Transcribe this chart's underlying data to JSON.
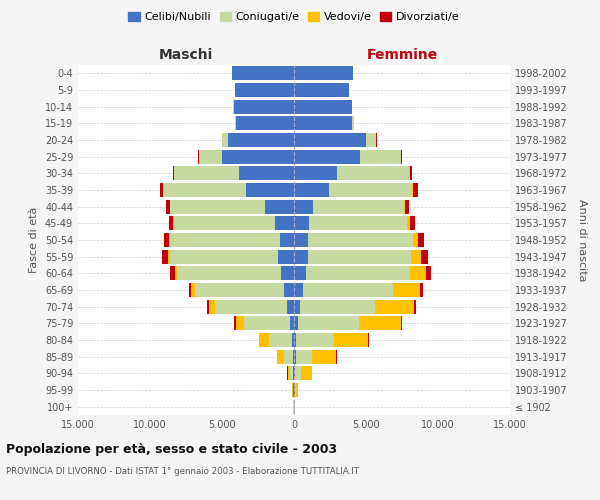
{
  "age_groups": [
    "100+",
    "95-99",
    "90-94",
    "85-89",
    "80-84",
    "75-79",
    "70-74",
    "65-69",
    "60-64",
    "55-59",
    "50-54",
    "45-49",
    "40-44",
    "35-39",
    "30-34",
    "25-29",
    "20-24",
    "15-19",
    "10-14",
    "5-9",
    "0-4"
  ],
  "birth_years": [
    "≤ 1902",
    "1903-1907",
    "1908-1912",
    "1913-1917",
    "1918-1922",
    "1923-1927",
    "1928-1932",
    "1933-1937",
    "1938-1942",
    "1943-1947",
    "1948-1952",
    "1953-1957",
    "1958-1962",
    "1963-1967",
    "1968-1972",
    "1973-1977",
    "1978-1982",
    "1983-1987",
    "1988-1992",
    "1993-1997",
    "1998-2002"
  ],
  "males": {
    "celibi": [
      15,
      40,
      60,
      100,
      150,
      300,
      500,
      700,
      900,
      1100,
      1000,
      1300,
      2000,
      3300,
      3800,
      5000,
      4600,
      4000,
      4200,
      4100,
      4300
    ],
    "coniugati": [
      20,
      60,
      200,
      600,
      1600,
      3200,
      5000,
      6200,
      7200,
      7500,
      7600,
      7000,
      6600,
      5800,
      4500,
      1600,
      400,
      80,
      20,
      5,
      3
    ],
    "vedovi": [
      8,
      40,
      180,
      450,
      650,
      550,
      420,
      230,
      180,
      130,
      90,
      70,
      40,
      25,
      15,
      8,
      3,
      1,
      0,
      0,
      0
    ],
    "divorziati": [
      3,
      8,
      15,
      25,
      35,
      90,
      110,
      180,
      320,
      420,
      370,
      320,
      230,
      180,
      110,
      50,
      15,
      4,
      1,
      0,
      0
    ]
  },
  "females": {
    "nubili": [
      15,
      40,
      80,
      120,
      170,
      300,
      450,
      650,
      850,
      950,
      950,
      1050,
      1350,
      2400,
      3000,
      4600,
      5000,
      4000,
      4000,
      3800,
      4100
    ],
    "coniugate": [
      20,
      80,
      400,
      1100,
      2600,
      4200,
      5200,
      6200,
      7200,
      7200,
      7300,
      6800,
      6300,
      5800,
      5000,
      2800,
      700,
      150,
      40,
      8,
      3
    ],
    "vedove": [
      15,
      180,
      750,
      1700,
      2400,
      2900,
      2700,
      1900,
      1100,
      650,
      380,
      180,
      90,
      55,
      35,
      18,
      8,
      2,
      0,
      0,
      0
    ],
    "divorziate": [
      3,
      12,
      25,
      35,
      45,
      90,
      140,
      180,
      380,
      480,
      430,
      380,
      260,
      330,
      180,
      70,
      25,
      8,
      2,
      0,
      0
    ]
  },
  "color_celibi": "#4472c4",
  "color_coniugati": "#c5d9a0",
  "color_vedovi": "#ffc000",
  "color_divorziati": "#c0000b",
  "title_main": "Popolazione per età, sesso e stato civile - 2003",
  "title_sub": "PROVINCIA DI LIVORNO - Dati ISTAT 1° gennaio 2003 - Elaborazione TUTTITALIA.IT",
  "xlabel_left": "Maschi",
  "xlabel_right": "Femmine",
  "ylabel_left": "Fasce di età",
  "ylabel_right": "Anni di nascita",
  "xlim": 15000,
  "legend_labels": [
    "Celibi/Nubili",
    "Coniugati/e",
    "Vedovi/e",
    "Divorziati/e"
  ],
  "bg_color": "#f5f5f5",
  "plot_bg": "#ffffff",
  "xticks": [
    -15000,
    -10000,
    -5000,
    0,
    5000,
    10000,
    15000
  ],
  "xticklabels": [
    "15.000",
    "10.000",
    "5.000",
    "0",
    "5.000",
    "10.000",
    "15.000"
  ]
}
